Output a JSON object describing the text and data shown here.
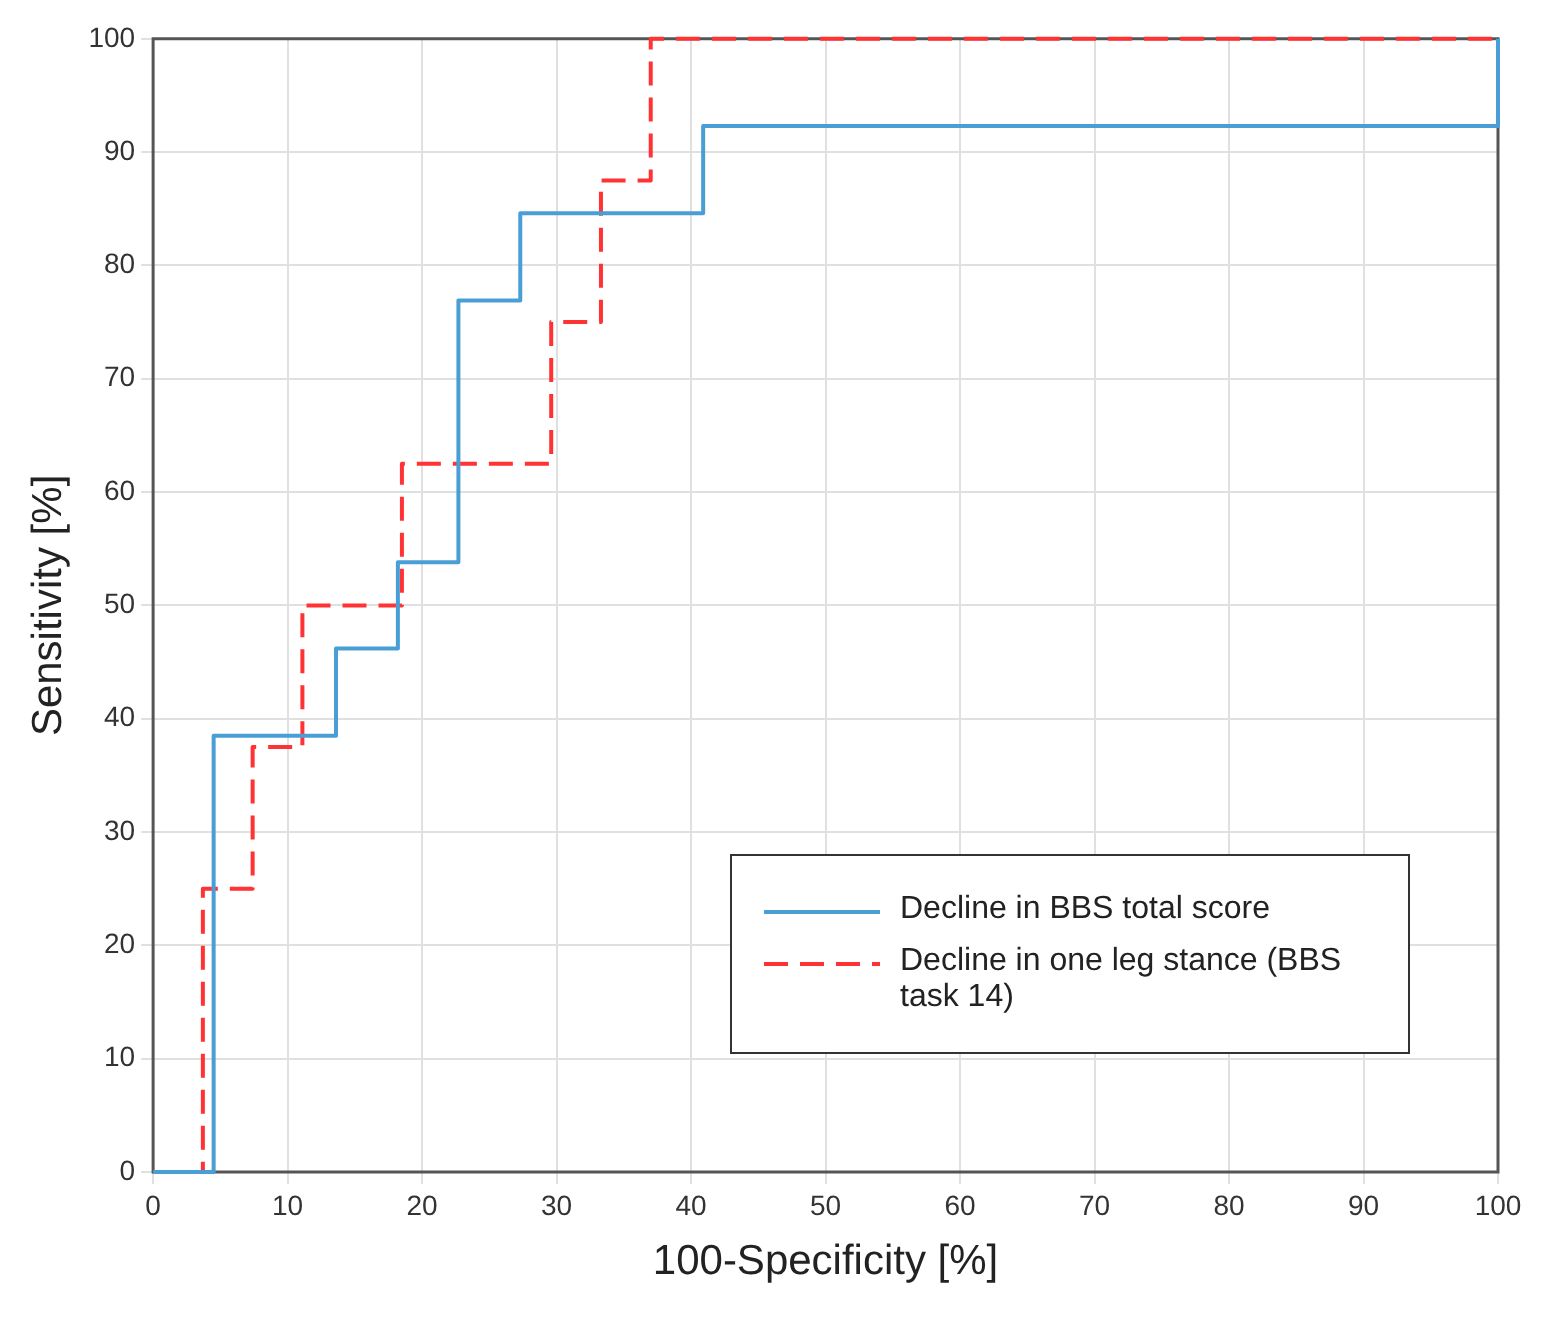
{
  "chart_data": {
    "type": "line",
    "xlabel": "100-Specificity [%]",
    "ylabel": "Sensitivity [%]",
    "xlim": [
      0,
      100
    ],
    "ylim": [
      0,
      100
    ],
    "xticks": [
      0,
      10,
      20,
      30,
      40,
      50,
      60,
      70,
      80,
      90,
      100
    ],
    "yticks": [
      0,
      10,
      20,
      30,
      40,
      50,
      60,
      70,
      80,
      90,
      100
    ],
    "grid": true,
    "legend": "bottom right",
    "marker": "none",
    "series": [
      {
        "name": "Decline in BBS total score",
        "color": "#4a9ed6",
        "line_style": "solid",
        "x": [
          0,
          4.5,
          4.5,
          13.6,
          13.6,
          18.2,
          18.2,
          22.7,
          22.7,
          27.3,
          27.3,
          40.9,
          40.9,
          100,
          100
        ],
        "values": [
          0,
          0,
          38.5,
          38.5,
          46.2,
          46.2,
          53.8,
          53.8,
          76.9,
          76.9,
          84.6,
          84.6,
          92.3,
          92.3,
          100
        ]
      },
      {
        "name": "Decline in one leg stance (BBS task 14)",
        "color": "#ff3333",
        "line_style": "dashed",
        "x": [
          0,
          3.7,
          3.7,
          7.4,
          7.4,
          11.1,
          11.1,
          18.5,
          18.5,
          29.6,
          29.6,
          33.3,
          33.3,
          37,
          37,
          100
        ],
        "values": [
          0,
          0,
          25,
          25,
          37.5,
          37.5,
          50,
          50,
          62.5,
          62.5,
          75,
          75,
          87.5,
          87.5,
          100,
          100
        ]
      }
    ]
  }
}
